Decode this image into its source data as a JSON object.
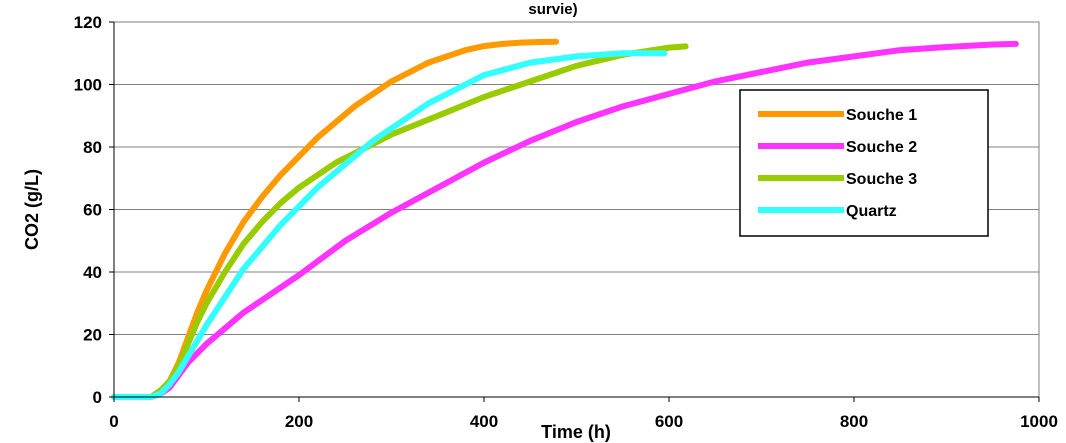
{
  "chart_data": {
    "type": "line",
    "title": "survie)",
    "xlabel": "Time (h)",
    "ylabel": "CO2 (g/L)",
    "xlim": [
      0,
      1000
    ],
    "ylim": [
      0,
      120
    ],
    "x_ticks": [
      0,
      200,
      400,
      600,
      800,
      1000
    ],
    "y_ticks": [
      0,
      20,
      40,
      60,
      80,
      100,
      120
    ],
    "grid": "horizontal",
    "legend_position": "right",
    "series": [
      {
        "name": "Souche 1",
        "color": "#FF9900",
        "x": [
          0,
          40,
          50,
          60,
          70,
          80,
          90,
          100,
          120,
          140,
          160,
          180,
          200,
          220,
          240,
          260,
          280,
          300,
          320,
          340,
          360,
          380,
          400,
          420,
          440,
          460,
          478
        ],
        "y": [
          0,
          0,
          2,
          5,
          11,
          19,
          27,
          34,
          46,
          56,
          64,
          71,
          77,
          83,
          88,
          93,
          97,
          101,
          104,
          107,
          109,
          111,
          112.3,
          113,
          113.4,
          113.6,
          113.7
        ]
      },
      {
        "name": "Souche 2",
        "color": "#FF33FF",
        "x": [
          0,
          40,
          50,
          60,
          70,
          80,
          90,
          100,
          120,
          140,
          160,
          180,
          200,
          250,
          300,
          350,
          400,
          450,
          500,
          550,
          600,
          650,
          700,
          750,
          800,
          850,
          900,
          950,
          975
        ],
        "y": [
          0,
          0,
          1,
          3,
          7,
          11,
          14,
          17,
          22,
          27,
          31,
          35,
          39,
          50,
          59,
          67,
          75,
          82,
          88,
          93,
          97,
          101,
          104,
          107,
          109,
          111,
          112,
          112.8,
          113
        ]
      },
      {
        "name": "Souche 3",
        "color": "#99CC00",
        "x": [
          0,
          40,
          50,
          60,
          70,
          80,
          90,
          100,
          120,
          140,
          160,
          180,
          200,
          220,
          240,
          260,
          280,
          300,
          350,
          400,
          450,
          500,
          550,
          600,
          618
        ],
        "y": [
          0,
          0,
          2,
          5,
          10,
          17,
          24,
          30,
          40,
          49,
          56,
          62,
          67,
          71,
          75,
          78,
          81,
          84,
          90,
          96,
          101,
          106,
          109.5,
          111.8,
          112.2
        ]
      },
      {
        "name": "Quartz",
        "color": "#33FFFF",
        "x": [
          0,
          40,
          50,
          60,
          70,
          80,
          90,
          100,
          120,
          140,
          160,
          180,
          200,
          220,
          240,
          260,
          280,
          300,
          320,
          340,
          360,
          380,
          400,
          450,
          500,
          550,
          595
        ],
        "y": [
          0,
          0,
          1,
          4,
          8,
          13,
          18,
          23,
          32,
          41,
          48,
          55,
          61,
          67,
          72,
          77,
          82,
          86,
          90,
          94,
          97,
          100,
          103,
          107,
          109,
          110,
          110
        ]
      }
    ]
  }
}
